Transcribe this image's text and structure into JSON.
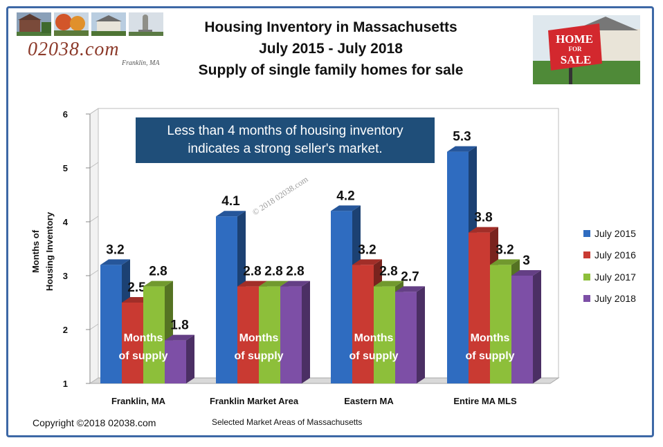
{
  "header": {
    "title_line1": "Housing Inventory in Massachusetts",
    "title_line2": "July 2015 - July 2018",
    "title_line3": "Supply of single family homes for sale",
    "brand": "02038.com",
    "brand_sub": "Franklin, MA",
    "sale_sign_line1": "HOME",
    "sale_sign_line2": "FOR",
    "sale_sign_line3": "SALE"
  },
  "callout": {
    "line1": "Less than 4 months of housing inventory",
    "line2": "indicates a strong seller's market."
  },
  "watermark": "© 2018 02038.com",
  "bar_inner_label": {
    "line1": "Months",
    "line2": "of supply"
  },
  "footer": {
    "copyright": "Copyright ©2018  02038.com"
  },
  "colors": {
    "frame": "#3d68a6",
    "callout_bg": "#1f4e79",
    "series": [
      "#2f6cc0",
      "#c93a32",
      "#8dbf3a",
      "#7d4fa6"
    ]
  },
  "icons": [
    "house-photo",
    "autumn-tree-photo",
    "town-hall-photo",
    "statue-photo",
    "home-for-sale-sign-photo"
  ],
  "chart_data": {
    "type": "bar",
    "categories": [
      "Franklin, MA",
      "Franklin Market Area",
      "Eastern MA",
      "Entire MA MLS"
    ],
    "series": [
      {
        "name": "July 2015",
        "values": [
          3.2,
          4.1,
          4.2,
          5.3
        ]
      },
      {
        "name": "July 2016",
        "values": [
          2.5,
          2.8,
          3.2,
          3.8
        ]
      },
      {
        "name": "July 2017",
        "values": [
          2.8,
          2.8,
          2.8,
          3.2
        ]
      },
      {
        "name": "July 2018",
        "values": [
          1.8,
          2.8,
          2.7,
          3
        ]
      }
    ],
    "xlabel": "Selected Market Areas of Massachusetts",
    "ylabel_line1": "Months of",
    "ylabel_line2": "Housing Inventory",
    "ylim": [
      1,
      6
    ],
    "yticks": [
      "1",
      "2",
      "3",
      "4",
      "5",
      "6"
    ],
    "grid": false,
    "legend_position": "right",
    "style": "3d-column"
  }
}
